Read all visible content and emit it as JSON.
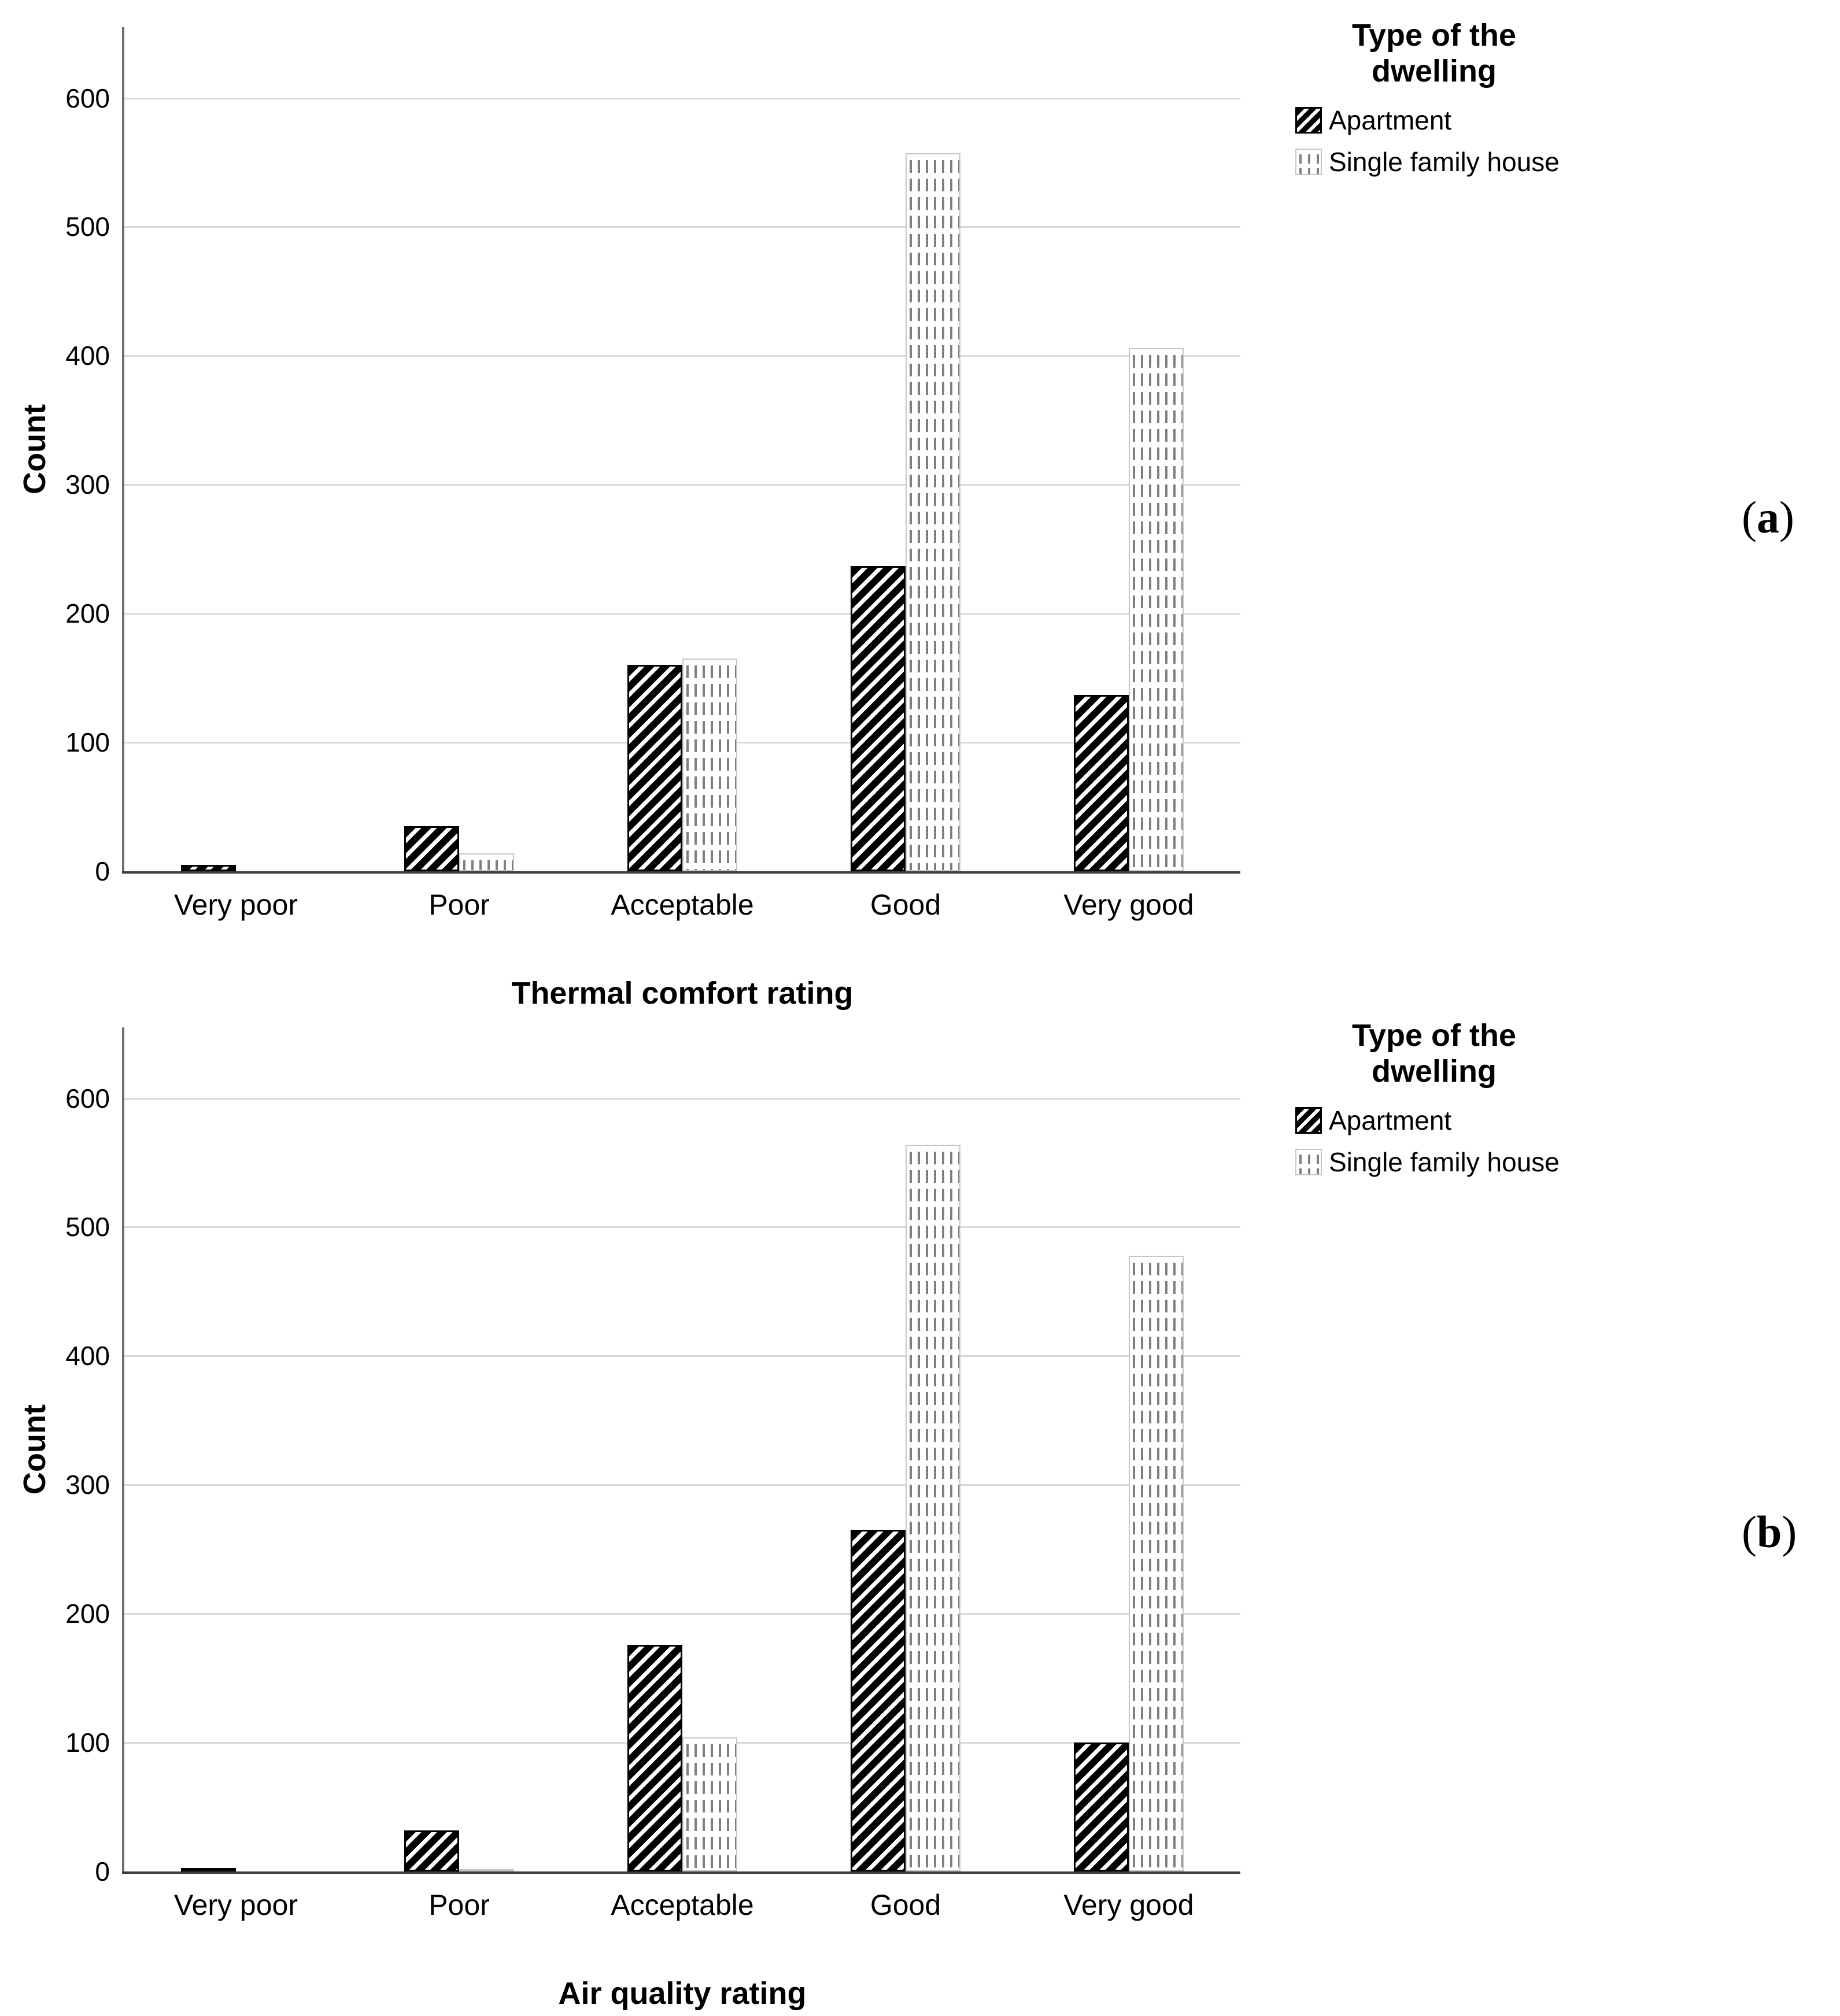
{
  "figure": {
    "panel_markers": {
      "a": {
        "pre": "(",
        "letter": "a",
        "post": ")"
      },
      "b": {
        "pre": "(",
        "letter": "b",
        "post": ")"
      }
    }
  },
  "legend": {
    "title_lines": [
      "Type of the",
      "dwelling"
    ],
    "items": [
      {
        "label": "Apartment",
        "swatch": "diagonal-hatch-icon"
      },
      {
        "label": "Single family house",
        "swatch": "vertical-dashes-icon"
      }
    ]
  },
  "colors": {
    "background": "#ffffff",
    "gridline": "#d9d9d9",
    "y_axis_line": "#6e6e6e",
    "x_axis_line": "#3c3c3c",
    "apartment_hatch": "#000000",
    "sfh_dash": "#7f7f7f",
    "sfh_border": "#c6c6c6",
    "text": "#000000"
  },
  "chart_data": [
    {
      "id": "a",
      "type": "bar",
      "title": "",
      "xlabel": "Thermal comfort rating",
      "ylabel": "Count",
      "categories": [
        "Very poor",
        "Poor",
        "Acceptable",
        "Good",
        "Very good"
      ],
      "series": [
        {
          "name": "Apartment",
          "pattern": "diagonal-hatch",
          "values": [
            5,
            35,
            160,
            237,
            137
          ]
        },
        {
          "name": "Single family house",
          "pattern": "vertical-dashes",
          "values": [
            0,
            14,
            165,
            557,
            406
          ]
        }
      ],
      "ylim": [
        0,
        655
      ],
      "yticks": [
        0,
        100,
        200,
        300,
        400,
        500,
        600
      ],
      "grid": true,
      "legend_position": "right"
    },
    {
      "id": "b",
      "type": "bar",
      "title": "",
      "xlabel": "Air quality rating",
      "ylabel": "Count",
      "categories": [
        "Very poor",
        "Poor",
        "Acceptable",
        "Good",
        "Very good"
      ],
      "series": [
        {
          "name": "Apartment",
          "pattern": "diagonal-hatch",
          "values": [
            2,
            32,
            176,
            265,
            100
          ]
        },
        {
          "name": "Single family house",
          "pattern": "vertical-dashes",
          "values": [
            0,
            2,
            104,
            564,
            478
          ]
        }
      ],
      "ylim": [
        0,
        655
      ],
      "yticks": [
        0,
        100,
        200,
        300,
        400,
        500,
        600
      ],
      "grid": true,
      "legend_position": "right"
    }
  ]
}
